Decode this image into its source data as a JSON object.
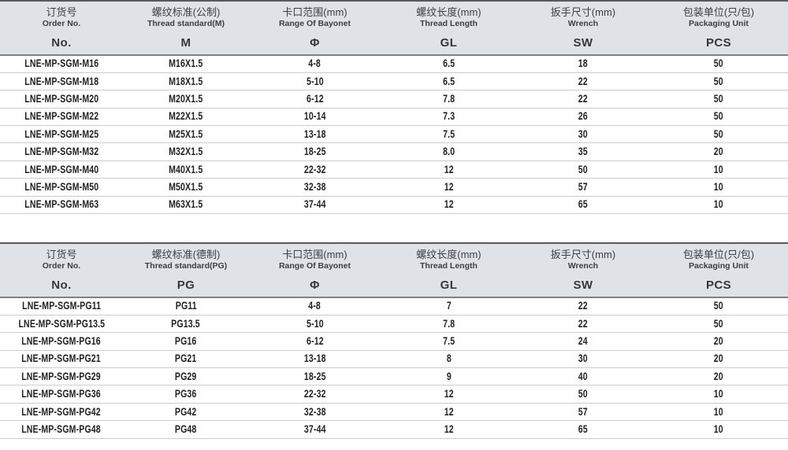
{
  "colors": {
    "header_bg": "#dfe2e7",
    "border_dark": "#565a5f",
    "border_mid": "#7e8287",
    "row_line": "#cbcdd0",
    "text_dark": "#202124",
    "text_header": "#3c4044"
  },
  "tables": [
    {
      "name": "metric-thread-spec-table",
      "columns": [
        {
          "zh": "订货号",
          "en": "Order No.",
          "symbol": "No."
        },
        {
          "zh": "螺纹标准(公制)",
          "en": "Thread standard(M)",
          "symbol": "M"
        },
        {
          "zh": "卡口范围(mm)",
          "en": "Range Of Bayonet",
          "symbol": "Φ"
        },
        {
          "zh": "螺纹长度(mm)",
          "en": "Thread Length",
          "symbol": "GL"
        },
        {
          "zh": "扳手尺寸(mm)",
          "en": "Wrench",
          "symbol": "SW"
        },
        {
          "zh": "包装单位(只/包)",
          "en": "Packaging Unit",
          "symbol": "PCS"
        }
      ],
      "rows": [
        [
          "LNE-MP-SGM-M16",
          "M16X1.5",
          "4-8",
          "6.5",
          "18",
          "50"
        ],
        [
          "LNE-MP-SGM-M18",
          "M18X1.5",
          "5-10",
          "6.5",
          "22",
          "50"
        ],
        [
          "LNE-MP-SGM-M20",
          "M20X1.5",
          "6-12",
          "7.8",
          "22",
          "50"
        ],
        [
          "LNE-MP-SGM-M22",
          "M22X1.5",
          "10-14",
          "7.3",
          "26",
          "50"
        ],
        [
          "LNE-MP-SGM-M25",
          "M25X1.5",
          "13-18",
          "7.5",
          "30",
          "50"
        ],
        [
          "LNE-MP-SGM-M32",
          "M32X1.5",
          "18-25",
          "8.0",
          "35",
          "20"
        ],
        [
          "LNE-MP-SGM-M40",
          "M40X1.5",
          "22-32",
          "12",
          "50",
          "10"
        ],
        [
          "LNE-MP-SGM-M50",
          "M50X1.5",
          "32-38",
          "12",
          "57",
          "10"
        ],
        [
          "LNE-MP-SGM-M63",
          "M63X1.5",
          "37-44",
          "12",
          "65",
          "10"
        ]
      ]
    },
    {
      "name": "pg-thread-spec-table",
      "columns": [
        {
          "zh": "订货号",
          "en": "Order No.",
          "symbol": "No."
        },
        {
          "zh": "螺纹标准(德制)",
          "en": "Thread standard(PG)",
          "symbol": "PG"
        },
        {
          "zh": "卡口范围(mm)",
          "en": "Range Of Bayonet",
          "symbol": "Φ"
        },
        {
          "zh": "螺纹长度(mm)",
          "en": "Thread Length",
          "symbol": "GL"
        },
        {
          "zh": "扳手尺寸(mm)",
          "en": "Wrench",
          "symbol": "SW"
        },
        {
          "zh": "包装单位(只/包)",
          "en": "Packaging Unit",
          "symbol": "PCS"
        }
      ],
      "rows": [
        [
          "LNE-MP-SGM-PG11",
          "PG11",
          "4-8",
          "7",
          "22",
          "50"
        ],
        [
          "LNE-MP-SGM-PG13.5",
          "PG13.5",
          "5-10",
          "7.8",
          "22",
          "50"
        ],
        [
          "LNE-MP-SGM-PG16",
          "PG16",
          "6-12",
          "7.5",
          "24",
          "20"
        ],
        [
          "LNE-MP-SGM-PG21",
          "PG21",
          "13-18",
          "8",
          "30",
          "20"
        ],
        [
          "LNE-MP-SGM-PG29",
          "PG29",
          "18-25",
          "9",
          "40",
          "20"
        ],
        [
          "LNE-MP-SGM-PG36",
          "PG36",
          "22-32",
          "12",
          "50",
          "10"
        ],
        [
          "LNE-MP-SGM-PG42",
          "PG42",
          "32-38",
          "12",
          "57",
          "10"
        ],
        [
          "LNE-MP-SGM-PG48",
          "PG48",
          "37-44",
          "12",
          "65",
          "10"
        ]
      ]
    }
  ]
}
